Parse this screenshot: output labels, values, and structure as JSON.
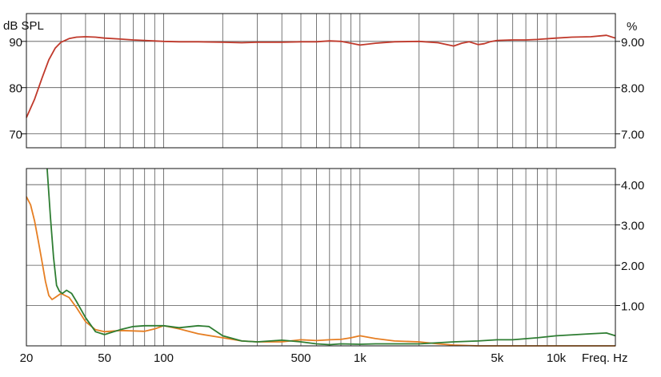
{
  "chart_data": [
    {
      "type": "line",
      "panel": "top",
      "x_scale": "log",
      "xlim": [
        20,
        20000
      ],
      "ylim": [
        67,
        96
      ],
      "y_left_label": "dB SPL",
      "y_right_label": "%",
      "y_left_ticks": [
        {
          "value": 70,
          "label": "70"
        },
        {
          "value": 80,
          "label": "80"
        },
        {
          "value": 90,
          "label": "90"
        }
      ],
      "y_right_ticks": [
        {
          "value": 70,
          "label": "7.00"
        },
        {
          "value": 80,
          "label": "8.00"
        },
        {
          "value": 90,
          "label": "9.00"
        }
      ],
      "grid": true,
      "series": [
        {
          "color": "#c0392b",
          "x": [
            20,
            22,
            24,
            26,
            28,
            30,
            33,
            36,
            40,
            45,
            50,
            60,
            70,
            80,
            100,
            120,
            150,
            200,
            250,
            300,
            400,
            500,
            600,
            700,
            800,
            900,
            1000,
            1200,
            1500,
            2000,
            2500,
            3000,
            3300,
            3600,
            4000,
            4300,
            4600,
            5000,
            6000,
            7000,
            8000,
            10000,
            12000,
            15000,
            18000,
            20000
          ],
          "y": [
            73.5,
            77.5,
            82,
            86,
            88.5,
            89.8,
            90.6,
            90.9,
            91,
            90.9,
            90.7,
            90.5,
            90.3,
            90.2,
            90.0,
            89.9,
            89.9,
            89.8,
            89.7,
            89.8,
            89.8,
            89.9,
            89.9,
            90.1,
            90.0,
            89.6,
            89.2,
            89.6,
            89.9,
            90.0,
            89.7,
            89.0,
            89.6,
            89.9,
            89.3,
            89.5,
            89.9,
            90.2,
            90.3,
            90.3,
            90.4,
            90.7,
            90.9,
            91.0,
            91.3,
            90.7
          ]
        }
      ]
    },
    {
      "type": "line",
      "panel": "bottom",
      "x_scale": "log",
      "xlim": [
        20,
        20000
      ],
      "ylim": [
        0,
        4.4
      ],
      "xlabel": "Freq. Hz",
      "x_ticks": [
        {
          "value": 20,
          "label": "20"
        },
        {
          "value": 50,
          "label": "50"
        },
        {
          "value": 100,
          "label": "100"
        },
        {
          "value": 500,
          "label": "500"
        },
        {
          "value": 1000,
          "label": "1k"
        },
        {
          "value": 5000,
          "label": "5k"
        },
        {
          "value": 10000,
          "label": "10k"
        }
      ],
      "y_right_ticks": [
        {
          "value": 1,
          "label": "1.00"
        },
        {
          "value": 2,
          "label": "2.00"
        },
        {
          "value": 3,
          "label": "3.00"
        },
        {
          "value": 4,
          "label": "4.00"
        }
      ],
      "grid": true,
      "series": [
        {
          "color": "#e67e22",
          "x": [
            20,
            21,
            22,
            23,
            24,
            25,
            26,
            27,
            28,
            30,
            33,
            36,
            40,
            45,
            50,
            60,
            70,
            80,
            90,
            100,
            120,
            150,
            200,
            250,
            300,
            400,
            500,
            600,
            700,
            800,
            900,
            1000,
            1200,
            1500,
            2000,
            2500,
            3000,
            4000,
            5000,
            7000,
            10000,
            15000,
            20000
          ],
          "y": [
            3.7,
            3.5,
            3.1,
            2.6,
            2.1,
            1.6,
            1.25,
            1.15,
            1.2,
            1.3,
            1.2,
            0.95,
            0.6,
            0.4,
            0.35,
            0.38,
            0.37,
            0.36,
            0.42,
            0.5,
            0.42,
            0.3,
            0.2,
            0.12,
            0.1,
            0.1,
            0.15,
            0.13,
            0.15,
            0.16,
            0.2,
            0.25,
            0.18,
            0.12,
            0.1,
            0.05,
            0.02,
            0.0,
            0.0,
            0.0,
            0.0,
            0.0,
            0.0
          ]
        },
        {
          "color": "#2e7d32",
          "x": [
            25.5,
            26.5,
            27.5,
            28.5,
            29.5,
            30.5,
            32,
            34,
            36,
            40,
            45,
            50,
            60,
            70,
            80,
            100,
            120,
            150,
            170,
            200,
            250,
            300,
            400,
            500,
            600,
            700,
            800,
            1000,
            1200,
            1500,
            2000,
            3000,
            4000,
            5000,
            6000,
            8000,
            10000,
            15000,
            18000,
            20000
          ],
          "y": [
            4.4,
            3.2,
            2.2,
            1.5,
            1.35,
            1.3,
            1.38,
            1.3,
            1.1,
            0.7,
            0.35,
            0.28,
            0.4,
            0.48,
            0.5,
            0.5,
            0.45,
            0.5,
            0.48,
            0.25,
            0.12,
            0.1,
            0.14,
            0.1,
            0.05,
            0.03,
            0.05,
            0.04,
            0.05,
            0.05,
            0.05,
            0.1,
            0.12,
            0.15,
            0.15,
            0.2,
            0.25,
            0.3,
            0.32,
            0.25
          ]
        }
      ]
    }
  ]
}
